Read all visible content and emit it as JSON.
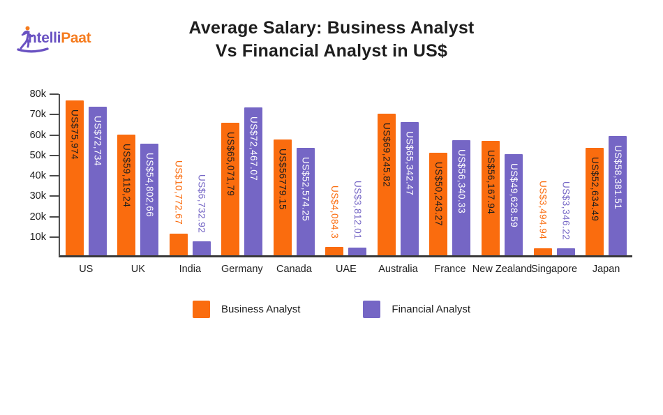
{
  "logo": {
    "brand_part1": "ntelli",
    "brand_part2": "Paat",
    "purple": "#6a52c2",
    "orange": "#f57c1f"
  },
  "title": {
    "line1": "Average Salary: Business Analyst",
    "line2": "Vs Financial Analyst in US$"
  },
  "colors": {
    "business_analyst": "#fa6c0e",
    "financial_analyst": "#7566c5",
    "label_on_orange": "#1d1d1d",
    "label_on_purple": "#ffffff",
    "axis": "#3a3a3a"
  },
  "y_axis": {
    "ticks": [
      "80k",
      "70k",
      "60k",
      "50k",
      "40k",
      "30k",
      "20k",
      "10k"
    ],
    "max": 80000
  },
  "legend": [
    {
      "label": "Business Analyst",
      "color": "#fa6c0e"
    },
    {
      "label": "Financial Analyst",
      "color": "#7566c5"
    }
  ],
  "chart_data": {
    "type": "bar",
    "title": "Average Salary: Business Analyst Vs Financial Analyst in US$",
    "xlabel": "",
    "ylabel": "",
    "ylim": [
      0,
      80000
    ],
    "grid": false,
    "legend_position": "bottom",
    "categories": [
      "US",
      "UK",
      "India",
      "Germany",
      "Canada",
      "UAE",
      "Australia",
      "France",
      "New Zealand",
      "Singapore",
      "Japan"
    ],
    "series": [
      {
        "name": "Business Analyst",
        "values": [
          75974,
          59119.24,
          10772.67,
          65071.79,
          56779.15,
          4084.3,
          69245.82,
          50243.27,
          56167.94,
          3494.94,
          52634.49
        ],
        "labels": [
          "US$75,974",
          "US$59,119,24",
          "US$10,772.67",
          "US$65,071,79",
          "US$56779.15",
          "US$4,084.3",
          "US$69,245.82",
          "US$50,243.27",
          "US$56,167.94",
          "US$3,494.94",
          "US$52,634.49"
        ]
      },
      {
        "name": "Financial Analyst",
        "values": [
          72734,
          54802.66,
          6732.92,
          72467.07,
          52574.25,
          3812.01,
          65342.47,
          56340.33,
          49628.59,
          3346.22,
          58381.51
        ],
        "labels": [
          "US$72,734",
          "US$54,802,66",
          "US$6,732.92",
          "US$72,467.07",
          "US$52,574.25",
          "US$3,812.01",
          "US$65,342.47",
          "US$56,340.33",
          "US$49,628.59",
          "US$3,346.22",
          "US$58,381.51"
        ]
      }
    ]
  }
}
